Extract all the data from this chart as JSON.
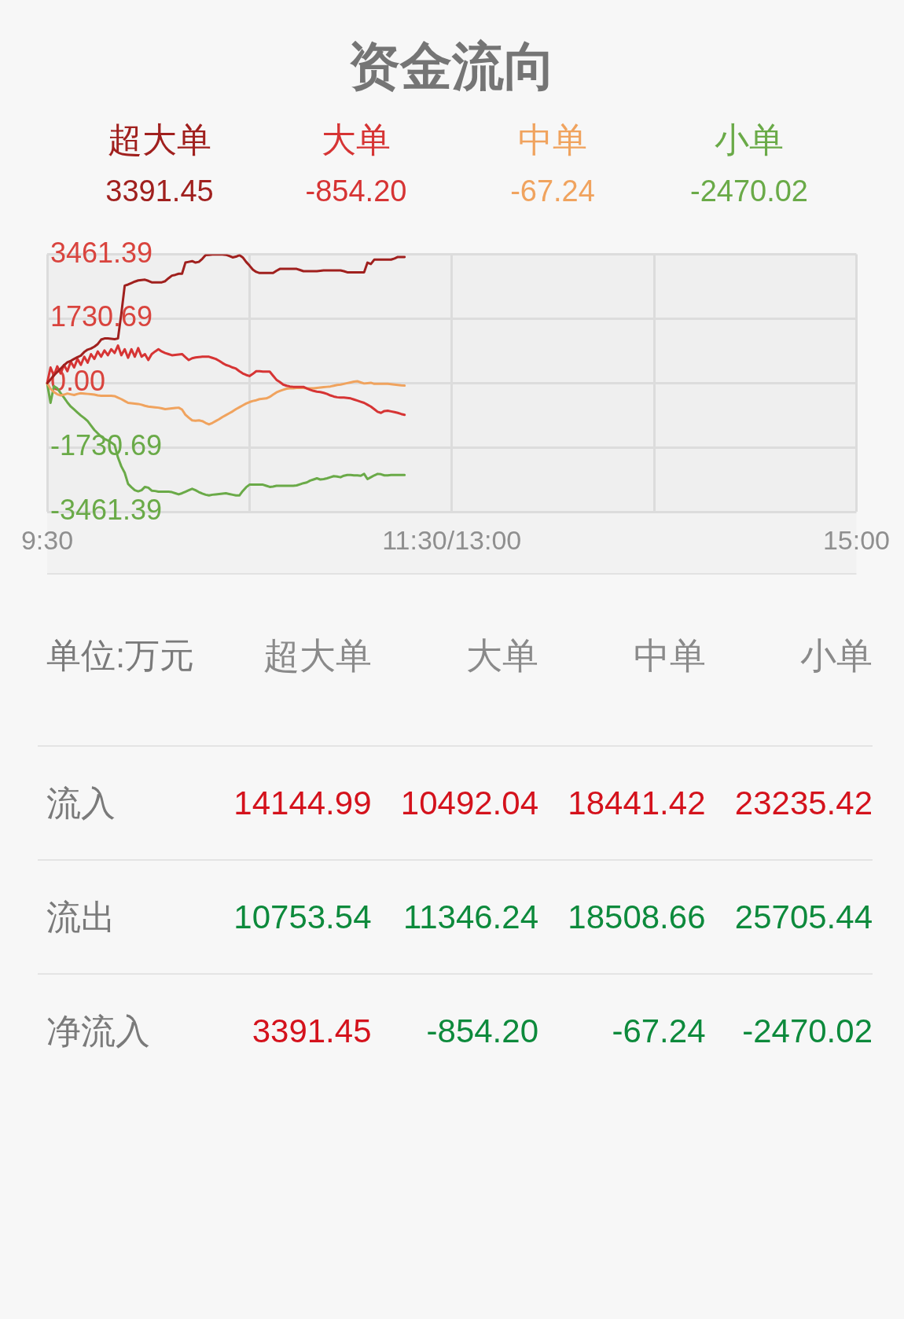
{
  "chart_data": [
    {
      "type": "line",
      "title": "资金流向",
      "legend": "top",
      "grid": true,
      "annotations": [
        "3391.45",
        "-854.20",
        "-67.24",
        "-2470.02"
      ],
      "categories": [
        "9:30",
        null,
        null,
        null,
        null,
        null,
        null,
        null,
        null,
        null,
        null,
        null,
        null,
        null,
        null,
        null,
        null,
        null,
        null,
        null,
        null,
        null,
        null,
        null,
        null,
        null,
        null,
        null,
        null,
        null,
        null,
        null,
        null,
        null,
        null,
        null,
        null,
        null,
        null,
        null,
        null,
        null,
        null,
        null,
        null,
        null,
        null,
        null,
        null,
        null,
        null,
        null,
        null,
        null,
        null,
        null,
        null,
        null,
        null,
        null,
        null,
        null,
        null,
        null,
        null,
        null,
        null,
        null,
        null,
        null,
        null,
        null,
        null,
        null,
        null,
        null,
        null,
        null,
        null,
        null,
        null,
        null,
        null,
        null,
        null,
        null,
        null,
        null,
        null,
        null,
        null,
        null,
        null,
        null,
        null,
        null,
        null,
        null,
        null,
        null,
        null,
        null,
        null,
        null,
        null,
        null,
        null,
        null,
        null,
        null,
        null,
        null,
        null,
        null,
        null,
        null,
        null,
        null,
        null,
        null,
        "11:30/13:00",
        null,
        null,
        null,
        null,
        null,
        null,
        null,
        null,
        null,
        null,
        null,
        null,
        null,
        null,
        null,
        null,
        null,
        null,
        null,
        null,
        null,
        null,
        null,
        null,
        null,
        null,
        null,
        null,
        null,
        null,
        null,
        null,
        null,
        null,
        null,
        null,
        null,
        null,
        null,
        null,
        null,
        null,
        null,
        null,
        null,
        null,
        null,
        null,
        null,
        null,
        null,
        null,
        null,
        null,
        null,
        null,
        null,
        null,
        null,
        null,
        null,
        null,
        null,
        null,
        null,
        null,
        null,
        null,
        null,
        null,
        null,
        null,
        null,
        null,
        null,
        null,
        null,
        null,
        null,
        null,
        null,
        null,
        null,
        null,
        null,
        null,
        null,
        null,
        null,
        null,
        null,
        null,
        null,
        null,
        null,
        null,
        null,
        null,
        null,
        null,
        null,
        null,
        null,
        null,
        null,
        null,
        null,
        null,
        null,
        null,
        null,
        null,
        null,
        null,
        null,
        null,
        null,
        null,
        null,
        "15:00"
      ],
      "ylim": [
        -3461.39,
        3461.39
      ],
      "yticks": [
        -3461.39,
        -1730.69,
        {
          "value": 0,
          "label": "0.00"
        },
        1730.69,
        3461.39
      ],
      "series": [
        {
          "name": "超大单",
          "color": "#a0201e",
          "values": [
            0,
            100,
            210,
            300,
            390,
            480,
            560,
            600,
            650,
            700,
            740,
            840,
            900,
            930,
            980,
            1050,
            1170,
            1200,
            1200,
            1190,
            1180,
            1200,
            1870,
            2620,
            2650,
            2690,
            2730,
            2760,
            2770,
            2780,
            2750,
            2710,
            2710,
            2710,
            2710,
            2740,
            2820,
            2890,
            2910,
            2940,
            2940,
            3240,
            3260,
            3280,
            3240,
            3260,
            3340,
            3440,
            3450,
            3460,
            3461.39,
            3460,
            3460,
            3450,
            3420,
            3380,
            3400,
            3440,
            3380,
            3260,
            3160,
            3050,
            2990,
            2960,
            2960,
            2960,
            2960,
            2960,
            3020,
            3070,
            3070,
            3070,
            3070,
            3070,
            3070,
            3040,
            3010,
            3010,
            3010,
            3010,
            3010,
            3020,
            3030,
            3030,
            3030,
            3030,
            3030,
            3030,
            3010,
            2980,
            2980,
            2980,
            2980,
            2980,
            2980,
            3240,
            3200,
            3320,
            3320,
            3320,
            3320,
            3320,
            3320,
            3350,
            3390,
            3390,
            3391.45,
            null,
            null,
            null,
            null,
            null,
            null,
            null,
            null,
            null,
            null,
            null,
            null,
            null,
            null,
            null,
            null,
            null,
            null,
            null,
            null,
            null,
            null,
            null,
            null,
            null,
            null,
            null,
            null,
            null,
            null,
            null,
            null,
            null,
            null,
            null,
            null,
            null,
            null,
            null,
            null,
            null,
            null,
            null,
            null,
            null,
            null,
            null,
            null,
            null,
            null,
            null,
            null,
            null,
            null,
            null,
            null,
            null,
            null,
            null,
            null,
            null,
            null,
            null,
            null,
            null,
            null,
            null,
            null,
            null,
            null,
            null,
            null,
            null,
            null,
            null,
            null,
            null,
            null,
            null,
            null,
            null,
            null,
            null,
            null,
            null,
            null,
            null,
            null,
            null,
            null,
            null,
            null,
            null,
            null,
            null,
            null,
            null,
            null,
            null,
            null,
            null,
            null,
            null,
            null,
            null,
            null,
            null,
            null,
            null,
            null,
            null,
            null,
            null,
            null,
            null,
            null,
            null,
            null,
            null,
            null,
            null,
            null,
            null,
            null,
            null,
            null,
            null,
            null,
            null,
            null,
            null,
            null,
            null,
            null
          ]
        },
        {
          "name": "大单",
          "color": "#d63434",
          "values": [
            0,
            420,
            200,
            450,
            260,
            490,
            320,
            580,
            420,
            650,
            490,
            710,
            550,
            780,
            650,
            850,
            710,
            880,
            750,
            910,
            810,
            1010,
            750,
            910,
            680,
            910,
            710,
            940,
            710,
            780,
            620,
            780,
            850,
            910,
            850,
            810,
            780,
            750,
            760,
            770,
            780,
            700,
            620,
            670,
            690,
            700,
            710,
            710,
            710,
            680,
            650,
            600,
            540,
            490,
            460,
            420,
            390,
            320,
            260,
            220,
            190,
            250,
            320,
            320,
            310,
            310,
            310,
            200,
            90,
            30,
            -40,
            -70,
            -90,
            -100,
            -100,
            -100,
            -100,
            -140,
            -180,
            -210,
            -230,
            -240,
            -260,
            -290,
            -330,
            -360,
            -380,
            -390,
            -390,
            -400,
            -410,
            -440,
            -470,
            -500,
            -530,
            -580,
            -630,
            -700,
            -770,
            -800,
            -750,
            -740,
            -760,
            -780,
            -800,
            -830,
            -854.2,
            null,
            null,
            null,
            null,
            null,
            null,
            null,
            null,
            null,
            null,
            null,
            null,
            null,
            null,
            null,
            null,
            null,
            null,
            null,
            null,
            null,
            null,
            null,
            null,
            null,
            null,
            null,
            null,
            null,
            null,
            null,
            null,
            null,
            null,
            null,
            null,
            null,
            null,
            null,
            null,
            null,
            null,
            null,
            null,
            null,
            null,
            null,
            null,
            null,
            null,
            null,
            null,
            null,
            null,
            null,
            null,
            null,
            null,
            null,
            null,
            null,
            null,
            null,
            null,
            null,
            null,
            null,
            null,
            null,
            null,
            null,
            null,
            null,
            null,
            null,
            null,
            null,
            null,
            null,
            null,
            null,
            null,
            null,
            null,
            null,
            null,
            null,
            null,
            null,
            null,
            null,
            null,
            null,
            null,
            null,
            null,
            null,
            null,
            null,
            null,
            null,
            null,
            null,
            null,
            null,
            null,
            null,
            null,
            null,
            null,
            null,
            null,
            null,
            null,
            null,
            null,
            null,
            null,
            null,
            null,
            null,
            null,
            null,
            null,
            null,
            null,
            null,
            null,
            null,
            null,
            null,
            null,
            null,
            null
          ]
        },
        {
          "name": "中单",
          "color": "#f0a35e",
          "values": [
            0,
            -150,
            -240,
            -300,
            -330,
            -310,
            -280,
            -300,
            -320,
            -290,
            -270,
            -280,
            -290,
            -300,
            -310,
            -330,
            -340,
            -340,
            -340,
            -340,
            -350,
            -390,
            -430,
            -480,
            -530,
            -540,
            -550,
            -560,
            -580,
            -610,
            -630,
            -640,
            -650,
            -660,
            -680,
            -700,
            -690,
            -680,
            -670,
            -660,
            -710,
            -850,
            -930,
            -1000,
            -1010,
            -1000,
            -1020,
            -1070,
            -1110,
            -1070,
            -1020,
            -970,
            -910,
            -860,
            -810,
            -760,
            -700,
            -650,
            -600,
            -550,
            -510,
            -480,
            -460,
            -430,
            -420,
            -410,
            -370,
            -310,
            -250,
            -210,
            -180,
            -150,
            -140,
            -140,
            -130,
            -130,
            -130,
            -140,
            -140,
            -140,
            -130,
            -120,
            -110,
            -100,
            -90,
            -70,
            -50,
            -40,
            -20,
            0,
            20,
            40,
            50,
            20,
            -10,
            0,
            10,
            -20,
            -20,
            -20,
            -20,
            -20,
            -30,
            -40,
            -50,
            -60,
            -67.24,
            null,
            null,
            null,
            null,
            null,
            null,
            null,
            null,
            null,
            null,
            null,
            null,
            null,
            null,
            null,
            null,
            null,
            null,
            null,
            null,
            null,
            null,
            null,
            null,
            null,
            null,
            null,
            null,
            null,
            null,
            null,
            null,
            null,
            null,
            null,
            null,
            null,
            null,
            null,
            null,
            null,
            null,
            null,
            null,
            null,
            null,
            null,
            null,
            null,
            null,
            null,
            null,
            null,
            null,
            null,
            null,
            null,
            null,
            null,
            null,
            null,
            null,
            null,
            null,
            null,
            null,
            null,
            null,
            null,
            null,
            null,
            null,
            null,
            null,
            null,
            null,
            null,
            null,
            null,
            null,
            null,
            null,
            null,
            null,
            null,
            null,
            null,
            null,
            null,
            null,
            null,
            null,
            null,
            null,
            null,
            null,
            null,
            null,
            null,
            null,
            null,
            null,
            null,
            null,
            null,
            null,
            null,
            null,
            null,
            null,
            null,
            null,
            null,
            null,
            null,
            null,
            null,
            null,
            null,
            null,
            null,
            null,
            null,
            null,
            null,
            null,
            null,
            null,
            null,
            null,
            null,
            null,
            null,
            null
          ]
        },
        {
          "name": "小单",
          "color": "#6aaa48",
          "values": [
            0,
            -530,
            -80,
            -140,
            -270,
            -390,
            -520,
            -630,
            -710,
            -790,
            -870,
            -940,
            -1020,
            -1140,
            -1260,
            -1350,
            -1440,
            -1500,
            -1540,
            -1600,
            -1660,
            -2000,
            -2240,
            -2410,
            -2710,
            -2800,
            -2880,
            -2910,
            -2880,
            -2790,
            -2810,
            -2890,
            -2900,
            -2920,
            -2920,
            -2920,
            -2920,
            -2930,
            -2960,
            -2990,
            -2960,
            -2920,
            -2880,
            -2840,
            -2880,
            -2930,
            -2970,
            -3000,
            -3020,
            -3000,
            -2990,
            -2980,
            -2970,
            -2960,
            -2980,
            -3000,
            -3020,
            -3020,
            -2900,
            -2800,
            -2730,
            -2730,
            -2730,
            -2730,
            -2730,
            -2760,
            -2790,
            -2780,
            -2760,
            -2760,
            -2760,
            -2760,
            -2760,
            -2760,
            -2750,
            -2720,
            -2690,
            -2670,
            -2620,
            -2590,
            -2560,
            -2590,
            -2580,
            -2560,
            -2530,
            -2500,
            -2510,
            -2530,
            -2490,
            -2470,
            -2470,
            -2480,
            -2480,
            -2490,
            -2440,
            -2580,
            -2530,
            -2480,
            -2440,
            -2450,
            -2480,
            -2480,
            -2470,
            -2470,
            -2470,
            -2470,
            -2470.02,
            null,
            null,
            null,
            null,
            null,
            null,
            null,
            null,
            null,
            null,
            null,
            null,
            null,
            null,
            null,
            null,
            null,
            null,
            null,
            null,
            null,
            null,
            null,
            null,
            null,
            null,
            null,
            null,
            null,
            null,
            null,
            null,
            null,
            null,
            null,
            null,
            null,
            null,
            null,
            null,
            null,
            null,
            null,
            null,
            null,
            null,
            null,
            null,
            null,
            null,
            null,
            null,
            null,
            null,
            null,
            null,
            null,
            null,
            null,
            null,
            null,
            null,
            null,
            null,
            null,
            null,
            null,
            null,
            null,
            null,
            null,
            null,
            null,
            null,
            null,
            null,
            null,
            null,
            null,
            null,
            null,
            null,
            null,
            null,
            null,
            null,
            null,
            null,
            null,
            null,
            null,
            null,
            null,
            null,
            null,
            null,
            null,
            null,
            null,
            null,
            null,
            null,
            null,
            null,
            null,
            null,
            null,
            null,
            null,
            null,
            null,
            null,
            null,
            null,
            null,
            null,
            null,
            null,
            null,
            null,
            null,
            null,
            null,
            null,
            null,
            null,
            null,
            null,
            null,
            null,
            null,
            null,
            null,
            null
          ]
        }
      ]
    },
    {
      "type": "other",
      "categories": [
        "超大单",
        "大单",
        "中单",
        "小单"
      ],
      "annotations": [
        "单位:万元"
      ],
      "data_labels": true,
      "series": [
        {
          "name": "流入",
          "colors": [
            "#d4121c",
            "#d4121c",
            "#d4121c",
            "#d4121c"
          ],
          "values": [
            14144.99,
            10492.04,
            18441.42,
            23235.42
          ]
        },
        {
          "name": "流出",
          "colors": [
            "#0d8a3c",
            "#0d8a3c",
            "#0d8a3c",
            "#0d8a3c"
          ],
          "values": [
            10753.54,
            11346.24,
            18508.66,
            25705.44
          ]
        },
        {
          "name": "净流入",
          "colors": [
            "#d4121c",
            "#0d8a3c",
            "#0d8a3c",
            "#0d8a3c"
          ],
          "values": [
            3391.45,
            -854.2,
            -67.24,
            -2470.02
          ],
          "value_labels": [
            "3391.45",
            "-854.20",
            "-67.24",
            "-2470.02"
          ]
        }
      ]
    }
  ]
}
